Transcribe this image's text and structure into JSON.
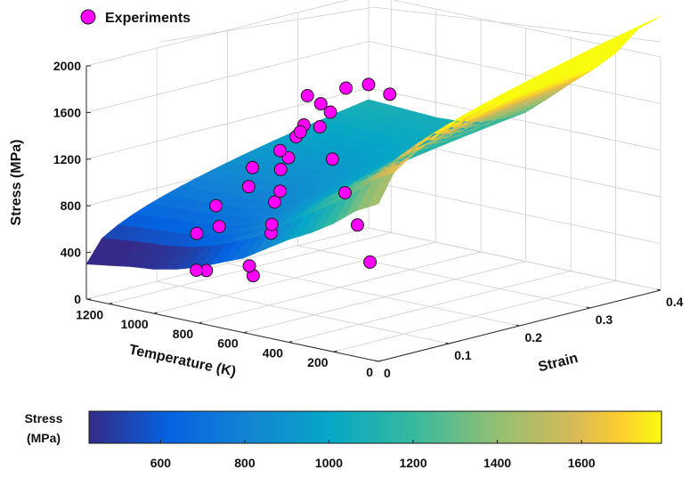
{
  "chart_data": {
    "type": "surface3d-scatter",
    "legend": {
      "label": "Experiments",
      "marker_color": "#ff00ff",
      "placement": "top-left"
    },
    "axes": {
      "z": {
        "label": "Stress (MPa)",
        "ticks": [
          0,
          400,
          800,
          1200,
          1600,
          2000
        ],
        "range": [
          0,
          2000
        ]
      },
      "x": {
        "label": "Temperature (K)",
        "ticks": [
          0,
          200,
          400,
          600,
          800,
          1000,
          1200
        ],
        "range": [
          0,
          1300
        ]
      },
      "y": {
        "label": "Strain",
        "ticks": [
          0,
          0.1,
          0.2,
          0.3,
          0.4
        ],
        "range": [
          0,
          0.4
        ]
      }
    },
    "grid": true,
    "surface": {
      "colormap": "parula",
      "temperature_nodes": [
        0,
        100,
        200,
        300,
        400,
        500,
        600,
        700,
        800,
        900,
        1000,
        1100,
        1200,
        1300
      ],
      "stress_at_zero_strain": [
        1350,
        1250,
        1100,
        980,
        880,
        760,
        640,
        560,
        480,
        420,
        380,
        360,
        330,
        300
      ],
      "strain_gain_at_0_4": [
        1000,
        950,
        850,
        790,
        730,
        680,
        640,
        620,
        630,
        660,
        690,
        720,
        760,
        800
      ]
    },
    "points": [
      {
        "temperature": 100,
        "strain": 0.02,
        "stress": 780
      },
      {
        "temperature": 250,
        "strain": 0.05,
        "stress": 990
      },
      {
        "temperature": 400,
        "strain": 0.08,
        "stress": 1160
      },
      {
        "temperature": 550,
        "strain": 0.11,
        "stress": 1340
      },
      {
        "temperature": 700,
        "strain": 0.14,
        "stress": 1510
      },
      {
        "temperature": 850,
        "strain": 0.17,
        "stress": 1670
      },
      {
        "temperature": 620,
        "strain": 0.02,
        "stress": 450
      },
      {
        "temperature": 700,
        "strain": 0.04,
        "stress": 470
      },
      {
        "temperature": 860,
        "strain": 0.03,
        "stress": 380
      },
      {
        "temperature": 920,
        "strain": 0.035,
        "stress": 350
      },
      {
        "temperature": 760,
        "strain": 0.09,
        "stress": 650
      },
      {
        "temperature": 820,
        "strain": 0.11,
        "stress": 670
      },
      {
        "temperature": 870,
        "strain": 0.13,
        "stress": 810
      },
      {
        "temperature": 960,
        "strain": 0.08,
        "stress": 640
      },
      {
        "temperature": 940,
        "strain": 0.16,
        "stress": 830
      },
      {
        "temperature": 1060,
        "strain": 0.08,
        "stress": 540
      },
      {
        "temperature": 1000,
        "strain": 0.18,
        "stress": 960
      },
      {
        "temperature": 1080,
        "strain": 0.16,
        "stress": 810
      },
      {
        "temperature": 1100,
        "strain": 0.12,
        "stress": 700
      },
      {
        "temperature": 1060,
        "strain": 0.21,
        "stress": 990
      },
      {
        "temperature": 1120,
        "strain": 0.24,
        "stress": 1100
      },
      {
        "temperature": 1160,
        "strain": 0.23,
        "stress": 980
      },
      {
        "temperature": 1180,
        "strain": 0.27,
        "stress": 1130
      },
      {
        "temperature": 1220,
        "strain": 0.21,
        "stress": 840
      },
      {
        "temperature": 1230,
        "strain": 0.31,
        "stress": 1230
      },
      {
        "temperature": 1250,
        "strain": 0.33,
        "stress": 1120
      },
      {
        "temperature": 1275,
        "strain": 0.36,
        "stress": 1270
      },
      {
        "temperature": 1290,
        "strain": 0.3,
        "stress": 980
      },
      {
        "temperature": 1300,
        "strain": 0.4,
        "stress": 1230
      },
      {
        "temperature": 1300,
        "strain": 0.43,
        "stress": 1100
      }
    ]
  },
  "colorbar": {
    "title_line1": "Stress",
    "title_line2": "(MPa)",
    "range": [
      430,
      1790
    ],
    "ticks": [
      600,
      800,
      1000,
      1200,
      1400,
      1600
    ]
  }
}
